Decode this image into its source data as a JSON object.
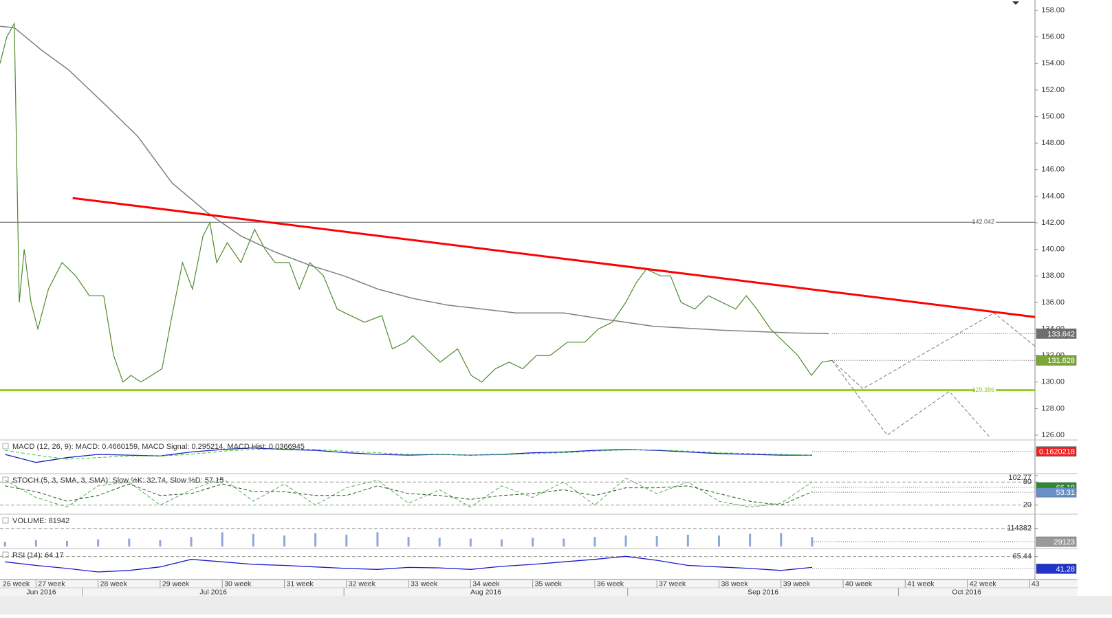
{
  "chart_data": [
    {
      "type": "line",
      "xlim": [
        26.42,
        43.09
      ],
      "xticks": [
        {
          "value": 26,
          "label": "26 week"
        },
        {
          "value": 27,
          "label": "27 week"
        },
        {
          "value": 28,
          "label": "28 week"
        },
        {
          "value": 29,
          "label": "29 week"
        },
        {
          "value": 30,
          "label": "30 week"
        },
        {
          "value": 31,
          "label": "31 week"
        },
        {
          "value": 32,
          "label": "32 week"
        },
        {
          "value": 33,
          "label": "33 week"
        },
        {
          "value": 34,
          "label": "34 week"
        },
        {
          "value": 35,
          "label": "35 week"
        },
        {
          "value": 36,
          "label": "36 week"
        },
        {
          "value": 37,
          "label": "37 week"
        },
        {
          "value": 38,
          "label": "38 week"
        },
        {
          "value": 39,
          "label": "39 week"
        },
        {
          "value": 40,
          "label": "40 week"
        },
        {
          "value": 41,
          "label": "41 week"
        },
        {
          "value": 42,
          "label": "42 week"
        },
        {
          "value": 43,
          "label": "43"
        }
      ],
      "first_month": "Jun 2016",
      "month_ticks": [
        {
          "value": 27.75,
          "label": "Jul 2016"
        },
        {
          "value": 31.96,
          "label": "Aug 2016"
        },
        {
          "value": 36.53,
          "label": "Sep 2016"
        },
        {
          "value": 40.89,
          "label": "Oct 2016"
        }
      ],
      "ylim": [
        125.74,
        158.78
      ],
      "yticks": [
        {
          "value": 126,
          "label": "126.00"
        },
        {
          "value": 128,
          "label": "128.00"
        },
        {
          "value": 130,
          "label": "130.00"
        },
        {
          "value": 132,
          "label": "132.00"
        },
        {
          "value": 134,
          "label": "134.00"
        },
        {
          "value": 136,
          "label": "136.00"
        },
        {
          "value": 138,
          "label": "138.00"
        },
        {
          "value": 140,
          "label": "140.00"
        },
        {
          "value": 142,
          "label": "142.00"
        },
        {
          "value": 144,
          "label": "144.00"
        },
        {
          "value": 146,
          "label": "146.00"
        },
        {
          "value": 148,
          "label": "148.00"
        },
        {
          "value": 150,
          "label": "150.00"
        },
        {
          "value": 152,
          "label": "152.00"
        },
        {
          "value": 154,
          "label": "154.00"
        },
        {
          "value": 156,
          "label": "156.00"
        },
        {
          "value": 158,
          "label": "158.00"
        }
      ],
      "series": [
        {
          "color": "#4f8a2a",
          "line_width": 1.2,
          "x": [
            26.42,
            26.53,
            26.65,
            26.73,
            26.81,
            26.92,
            27.03,
            27.2,
            27.42,
            27.64,
            27.86,
            28.09,
            28.25,
            28.4,
            28.53,
            28.69,
            28.86,
            29.03,
            29.19,
            29.36,
            29.52,
            29.69,
            29.8,
            29.91,
            30.08,
            30.3,
            30.52,
            30.69,
            30.85,
            31.08,
            31.24,
            31.41,
            31.63,
            31.85,
            32.07,
            32.29,
            32.57,
            32.74,
            32.96,
            33.07,
            33.29,
            33.51,
            33.79,
            34.01,
            34.18,
            34.4,
            34.62,
            34.84,
            35.06,
            35.28,
            35.56,
            35.84,
            36.06,
            36.28,
            36.5,
            36.67,
            36.83,
            37.06,
            37.22,
            37.39,
            37.61,
            37.83,
            38.05,
            38.27,
            38.44,
            38.61,
            38.83,
            39.05,
            39.27,
            39.49,
            39.66,
            39.82
          ],
          "values": [
            154,
            156,
            157,
            136,
            140,
            136,
            134,
            137,
            139,
            138,
            136.5,
            136.5,
            132,
            130,
            130.5,
            130,
            130.5,
            131,
            135,
            139,
            137,
            141,
            142,
            139,
            140.5,
            139,
            141.5,
            140,
            139,
            139,
            137,
            139,
            138,
            135.5,
            135,
            134.5,
            135,
            132.5,
            133,
            133.5,
            132.5,
            131.5,
            132.5,
            130.5,
            130,
            131,
            131.5,
            131,
            132,
            132,
            133,
            133,
            134,
            134.5,
            136,
            137.5,
            138.5,
            138,
            138,
            136,
            135.5,
            136.5,
            136,
            135.5,
            136.5,
            135.5,
            134,
            133,
            132,
            130.5,
            131.5,
            131.628
          ]
        },
        {
          "color": "#808080",
          "line_width": 1.5,
          "x": [
            26.42,
            26.65,
            27.09,
            27.53,
            28.09,
            28.64,
            29.19,
            29.75,
            30.3,
            30.85,
            31.41,
            31.96,
            32.51,
            33.07,
            33.62,
            34.18,
            34.73,
            35.5,
            36.06,
            36.94,
            38.05,
            39.16,
            39.77
          ],
          "values": [
            156.8,
            156.7,
            155,
            153.5,
            151,
            148.5,
            145,
            142.8,
            141,
            139.8,
            138.8,
            138,
            137,
            136.3,
            135.8,
            135.5,
            135.2,
            135.2,
            134.8,
            134.2,
            133.9,
            133.7,
            133.642
          ]
        },
        {
          "color": "#ff0000",
          "line_width": 3,
          "x": [
            27.59,
            43.09
          ],
          "values": [
            143.86,
            134.9
          ]
        },
        {
          "color": "#777777",
          "line_width": 1,
          "dash": true,
          "x": [
            39.82,
            40.32,
            42.43,
            43.09
          ],
          "values": [
            131.628,
            129.5,
            135.2,
            132.7
          ]
        },
        {
          "color": "#777777",
          "line_width": 1,
          "dash": true,
          "x": [
            39.82,
            40.71,
            41.71,
            42.37
          ],
          "values": [
            131.628,
            126,
            129.3,
            125.8
          ]
        }
      ],
      "hlines": [
        {
          "value": 142.042,
          "color": "#555555",
          "line_width": 1
        },
        {
          "value": 129.386,
          "color": "#99cc22",
          "line_width": 3
        }
      ],
      "value_boxes": [
        {
          "value": 133.642,
          "color": "#6e6e6e"
        },
        {
          "value": 131.628,
          "color": "#7aa63a"
        }
      ]
    },
    {
      "type": "line",
      "label": "MACD (12, 26, 9): MACD: 0.4660159, MACD Signal: 0.295214, MACD Hist: 0.0366945",
      "ylim": [
        -2.5,
        1.5
      ],
      "yticks": [],
      "x": [
        26.5,
        27,
        27.5,
        28,
        28.5,
        29,
        29.5,
        30,
        30.5,
        31,
        31.5,
        32,
        32.5,
        33,
        33.5,
        34,
        34.5,
        35,
        35.5,
        36,
        36.5,
        37,
        37.5,
        38,
        38.5,
        39,
        39.5
      ],
      "series": [
        {
          "color": "#1a1acc",
          "line_width": 1.3,
          "values": [
            -0.2,
            -1.2,
            -0.6,
            -0.2,
            -0.3,
            -0.4,
            0.1,
            0.4,
            0.6,
            0.4,
            0.3,
            0.0,
            -0.2,
            -0.3,
            -0.2,
            -0.3,
            -0.2,
            0.0,
            0.1,
            0.3,
            0.4,
            0.3,
            0.1,
            -0.1,
            -0.2,
            -0.3,
            -0.3
          ]
        },
        {
          "color": "#33cc33",
          "line_width": 1,
          "dash": true,
          "values": [
            0.3,
            -0.3,
            -0.8,
            -0.6,
            -0.4,
            -0.4,
            -0.2,
            0.2,
            0.4,
            0.5,
            0.4,
            0.2,
            0.0,
            -0.2,
            -0.2,
            -0.3,
            -0.25,
            -0.1,
            0.0,
            0.2,
            0.35,
            0.35,
            0.2,
            0.0,
            -0.1,
            -0.2,
            -0.3
          ]
        }
      ],
      "value_boxes": [
        {
          "value": 0.1620218,
          "color": "#ee2222"
        }
      ]
    },
    {
      "type": "line",
      "label": "STOCH (5, 3, SMA, 3, SMA): Slow %K: 32.74, Slow %D: 57.15",
      "ylim": [
        0,
        100
      ],
      "yticks": [
        20,
        80,
        102.77
      ],
      "x": [
        26.5,
        27,
        27.5,
        28,
        28.5,
        29,
        29.5,
        30,
        30.5,
        31,
        31.5,
        32,
        32.5,
        33,
        33.5,
        34,
        34.5,
        35,
        35.5,
        36,
        36.5,
        37,
        37.5,
        38,
        38.5,
        39,
        39.5
      ],
      "series": [
        {
          "color": "#55aa55",
          "line_width": 1,
          "dash": true,
          "values": [
            85,
            40,
            15,
            70,
            80,
            20,
            60,
            90,
            30,
            75,
            20,
            65,
            85,
            25,
            60,
            15,
            70,
            40,
            80,
            20,
            90,
            50,
            80,
            30,
            15,
            25,
            80
          ]
        },
        {
          "color": "#225522",
          "line_width": 1,
          "dash": true,
          "values": [
            70,
            55,
            30,
            45,
            75,
            45,
            50,
            75,
            55,
            55,
            45,
            45,
            70,
            50,
            45,
            35,
            45,
            50,
            60,
            45,
            65,
            65,
            70,
            50,
            30,
            20,
            55
          ]
        }
      ],
      "value_boxes": [
        {
          "value": 66.19,
          "color": "#2f8a2f"
        },
        {
          "value": 53.31,
          "color": "#6a8fc8"
        }
      ]
    },
    {
      "type": "bar",
      "label": "VOLUME: 81942",
      "ylim": [
        0,
        200000
      ],
      "yticks": [
        114382
      ],
      "color": "#8fa7d8",
      "x": [
        26.5,
        27,
        27.5,
        28,
        28.5,
        29,
        29.5,
        30,
        30.5,
        31,
        31.5,
        32,
        32.5,
        33,
        33.5,
        34,
        34.5,
        35,
        35.5,
        36,
        36.5,
        37,
        37.5,
        38,
        38.5,
        39,
        39.5
      ],
      "values": [
        30000,
        40000,
        35000,
        45000,
        50000,
        40000,
        60000,
        90000,
        80000,
        70000,
        85000,
        75000,
        90000,
        60000,
        55000,
        50000,
        45000,
        55000,
        50000,
        60000,
        70000,
        65000,
        75000,
        70000,
        80000,
        85000,
        60000
      ],
      "value_boxes": [
        {
          "value": 29123,
          "color": "#9a9a9a"
        }
      ]
    },
    {
      "type": "line",
      "label": "RSI (14): 64.17",
      "ylim": [
        20,
        80
      ],
      "yticks": [
        65.44
      ],
      "x": [
        26.5,
        27,
        27.5,
        28,
        28.5,
        29,
        29.5,
        30,
        30.5,
        31,
        31.5,
        32,
        32.5,
        33,
        33.5,
        34,
        34.5,
        35,
        35.5,
        36,
        36.5,
        37,
        37.5,
        38,
        38.5,
        39,
        39.5
      ],
      "series": [
        {
          "color": "#1a1acc",
          "line_width": 1.3,
          "values": [
            55,
            48,
            42,
            35,
            38,
            45,
            60,
            55,
            50,
            48,
            45,
            42,
            40,
            44,
            43,
            40,
            46,
            50,
            55,
            60,
            66,
            58,
            48,
            45,
            42,
            38,
            44
          ]
        }
      ],
      "value_boxes": [
        {
          "value": 41.28,
          "color": "#2233cc"
        }
      ]
    }
  ]
}
